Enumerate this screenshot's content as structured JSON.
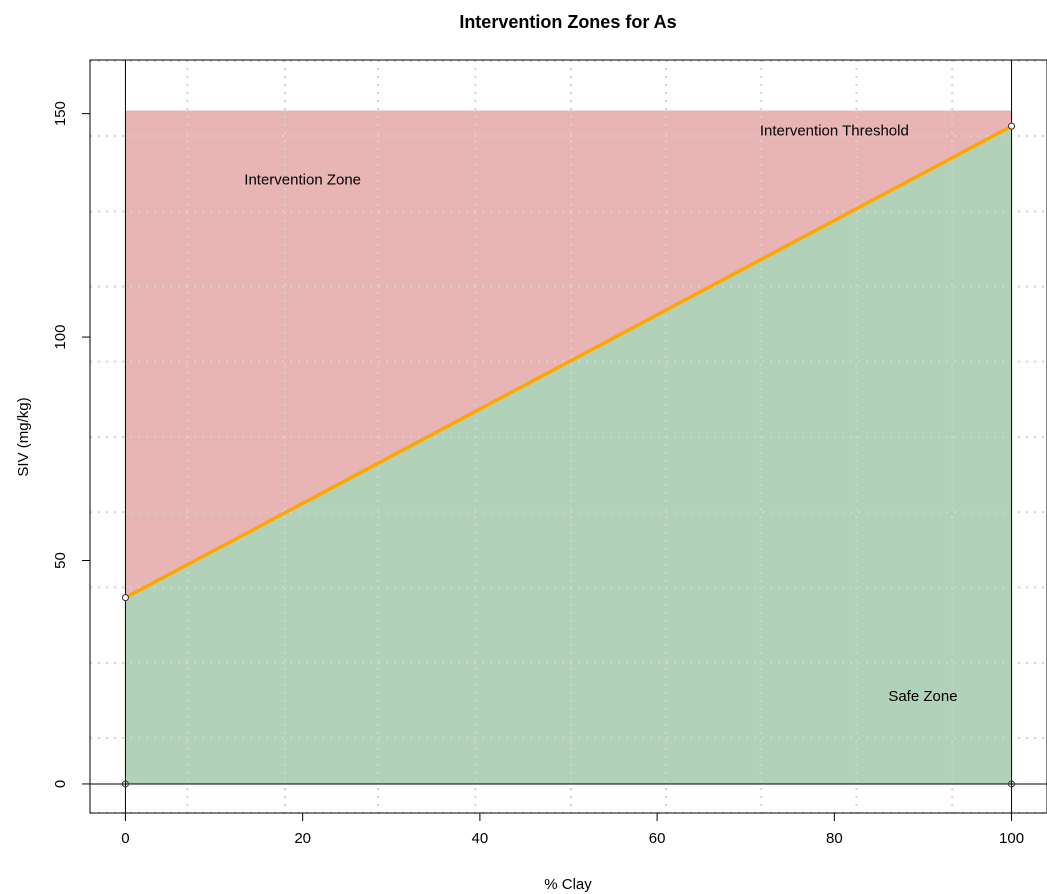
{
  "chart_data": {
    "type": "area",
    "title": "Intervention Zones for  As",
    "xlabel": "% Clay",
    "ylabel": "SIV (mg/kg)",
    "xlim": [
      -4,
      104
    ],
    "ylim": [
      -6.5,
      162
    ],
    "xticks": [
      0,
      20,
      40,
      60,
      80,
      100
    ],
    "yticks": [
      0,
      50,
      100,
      150
    ],
    "grid": true,
    "x_gridlines": [
      7,
      18,
      28.5,
      39.5,
      50.3,
      61,
      71.7,
      82.5,
      93.3
    ],
    "y_gridlines": [
      -6.5,
      10.3,
      27.1,
      44,
      60.8,
      77.6,
      94.5,
      111.3,
      128.1,
      145,
      161.8
    ],
    "region_xmin": 0,
    "region_xmax": 100,
    "region_ymax": 150.7,
    "series": [
      {
        "name": "Intervention Threshold",
        "x": [
          0,
          100
        ],
        "y": [
          41.7,
          147.2
        ],
        "color": "#FFA500"
      }
    ],
    "zones": [
      {
        "name": "Intervention Zone",
        "color": "#E8B4B4"
      },
      {
        "name": "Safe Zone",
        "color": "#B2D1B9"
      }
    ],
    "annotations": [
      {
        "text": "Intervention Zone",
        "x": 20,
        "y": 135
      },
      {
        "text": "Intervention Threshold",
        "x": 80,
        "y": 146
      },
      {
        "text": "Safe Zone",
        "x": 90,
        "y": 19.5
      }
    ],
    "vertical_lines_x": [
      0,
      100
    ],
    "horizontal_line_y": 0
  }
}
